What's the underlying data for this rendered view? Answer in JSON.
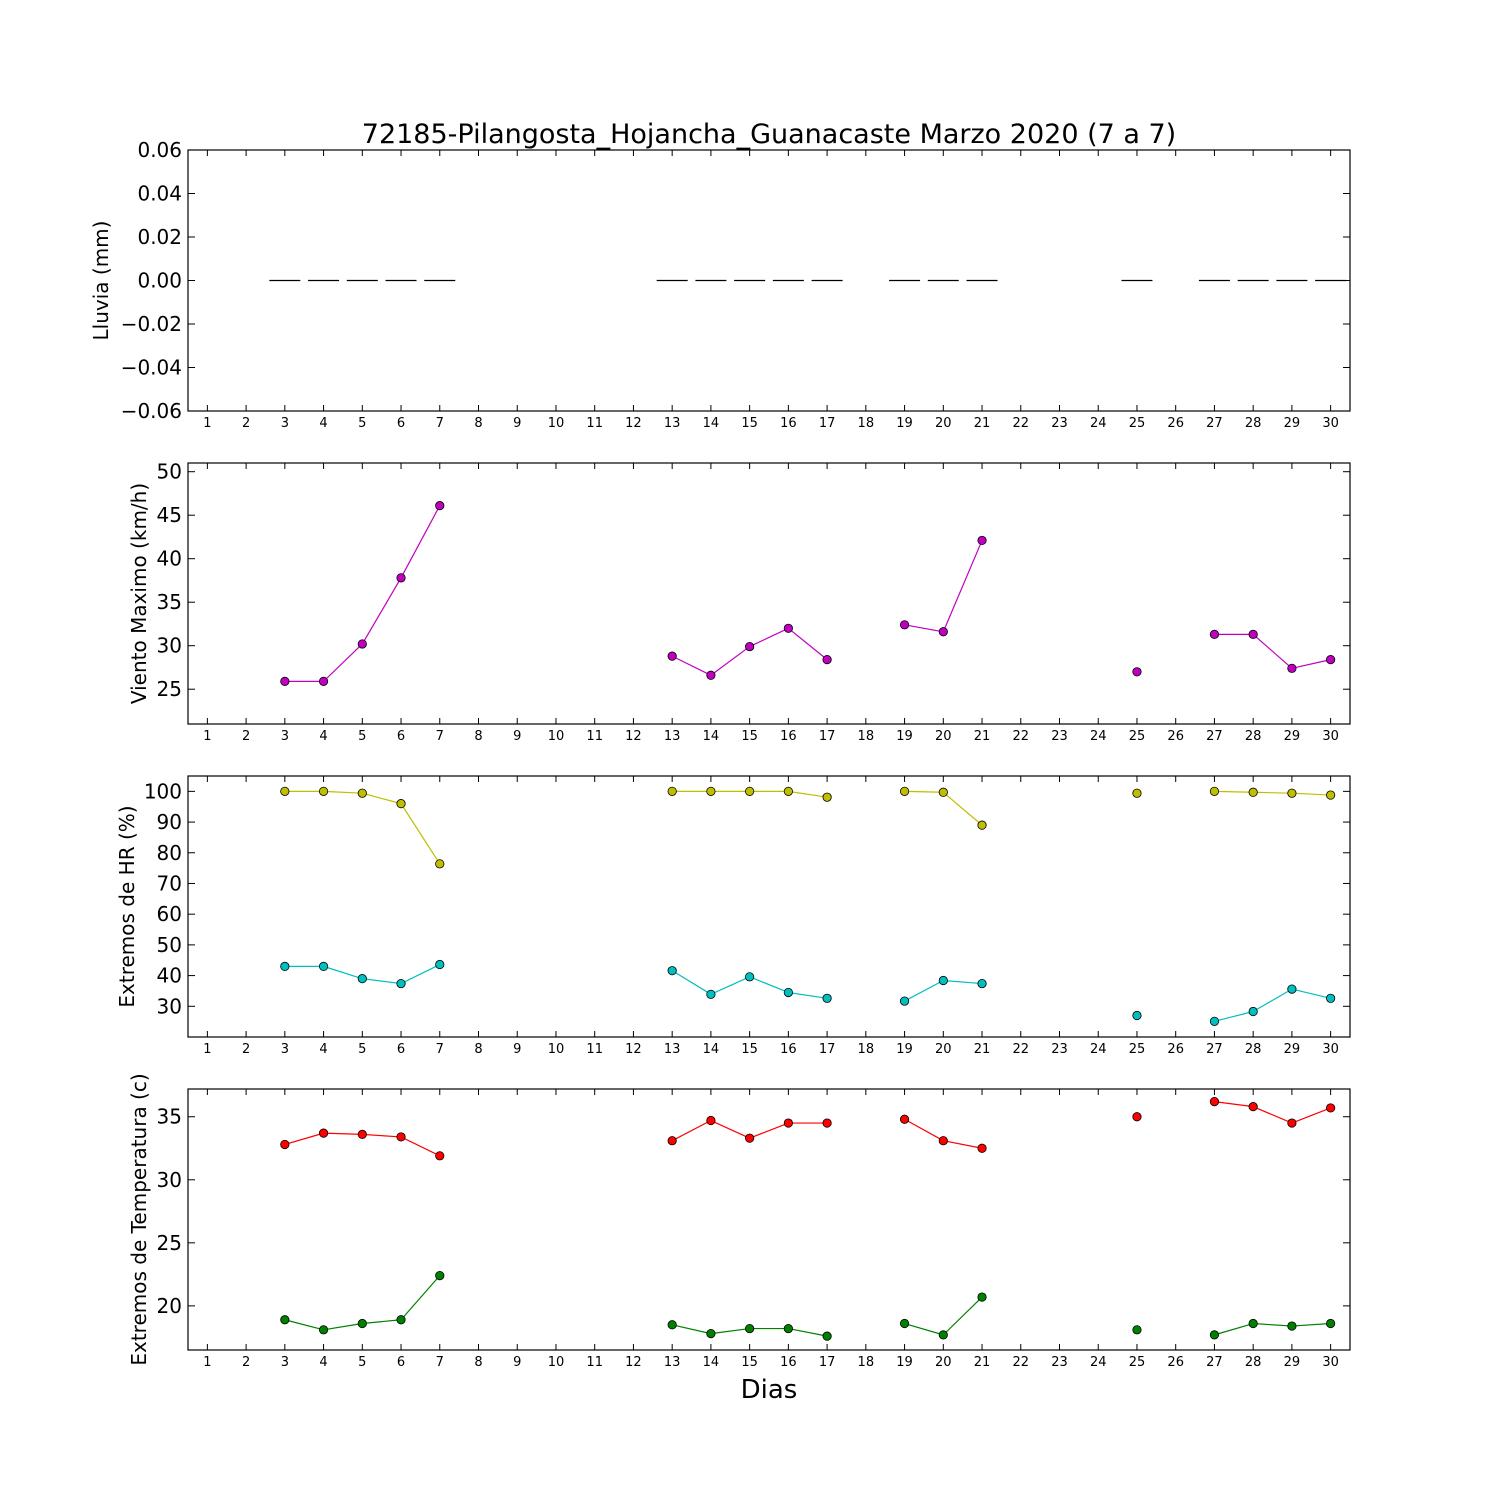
{
  "chart_data": {
    "type": "line",
    "title": "72185-Pilangosta_Hojancha_Guanacaste Marzo 2020  (7 a 7)",
    "xlabel": "Dias",
    "x": [
      1,
      2,
      3,
      4,
      5,
      6,
      7,
      8,
      9,
      10,
      11,
      12,
      13,
      14,
      15,
      16,
      17,
      18,
      19,
      20,
      21,
      22,
      23,
      24,
      25,
      26,
      27,
      28,
      29,
      30
    ],
    "panels": [
      {
        "ylabel": "Lluvia (mm)",
        "type": "bar",
        "ylim": [
          -0.06,
          0.06
        ],
        "yticks": [
          "0.06",
          "0.04",
          "0.02",
          "0.00",
          "−0.02",
          "−0.04",
          "−0.06"
        ],
        "ytick_values": [
          0.06,
          0.04,
          0.02,
          0.0,
          -0.02,
          -0.04,
          -0.06
        ],
        "series": [
          {
            "color": "#000000",
            "values": [
              null,
              null,
              0,
              0,
              0,
              0,
              0,
              null,
              null,
              null,
              null,
              null,
              0,
              0,
              0,
              0,
              0,
              null,
              0,
              0,
              0,
              null,
              null,
              null,
              0,
              null,
              0,
              0,
              0,
              0
            ]
          }
        ]
      },
      {
        "ylabel": "Viento Maximo (km/h)",
        "type": "line",
        "ylim": [
          21,
          51
        ],
        "yticks": [
          "50",
          "45",
          "40",
          "35",
          "30",
          "25"
        ],
        "ytick_values": [
          50,
          45,
          40,
          35,
          30,
          25
        ],
        "series": [
          {
            "color": "#bf00bf",
            "values": [
              null,
              null,
              25.9,
              25.9,
              30.2,
              37.8,
              46.1,
              null,
              null,
              null,
              null,
              null,
              28.8,
              26.6,
              29.9,
              32.0,
              28.4,
              null,
              32.4,
              31.6,
              42.1,
              null,
              null,
              null,
              27.0,
              null,
              31.3,
              31.3,
              27.4,
              28.4
            ]
          }
        ]
      },
      {
        "ylabel": "Extremos de HR (%)",
        "type": "line",
        "ylim": [
          20,
          105
        ],
        "yticks": [
          "100",
          "90",
          "80",
          "70",
          "60",
          "50",
          "40",
          "30"
        ],
        "ytick_values": [
          100,
          90,
          80,
          70,
          60,
          50,
          40,
          30
        ],
        "series": [
          {
            "color": "#bfbf00",
            "values": [
              null,
              null,
              100,
              100,
              99.4,
              96,
              76.4,
              null,
              null,
              null,
              null,
              null,
              100,
              100,
              100,
              100,
              98.1,
              null,
              100,
              99.7,
              89,
              null,
              null,
              null,
              99.4,
              null,
              100,
              99.7,
              99.4,
              98.8
            ]
          },
          {
            "color": "#00bfbf",
            "values": [
              null,
              null,
              43,
              43,
              39,
              37.4,
              43.6,
              null,
              null,
              null,
              null,
              null,
              41.6,
              33.9,
              39.6,
              34.5,
              32.6,
              null,
              31.7,
              38.4,
              37.4,
              null,
              null,
              null,
              27,
              null,
              25.1,
              28.3,
              35.6,
              32.6
            ]
          }
        ]
      },
      {
        "ylabel": "Extremos de Temperatura (c)",
        "type": "line",
        "ylim": [
          16.5,
          37.2
        ],
        "yticks": [
          "35",
          "30",
          "25",
          "20"
        ],
        "ytick_values": [
          35,
          30,
          25,
          20
        ],
        "series": [
          {
            "color": "#ff0000",
            "values": [
              null,
              null,
              32.8,
              33.7,
              33.6,
              33.4,
              31.9,
              null,
              null,
              null,
              null,
              null,
              33.1,
              34.7,
              33.3,
              34.5,
              34.5,
              null,
              34.8,
              33.1,
              32.5,
              null,
              null,
              null,
              35.0,
              null,
              36.2,
              35.8,
              34.5,
              35.7
            ]
          },
          {
            "color": "#008000",
            "values": [
              null,
              null,
              18.9,
              18.1,
              18.6,
              18.9,
              22.4,
              null,
              null,
              null,
              null,
              null,
              18.5,
              17.8,
              18.2,
              18.2,
              17.6,
              null,
              18.6,
              17.7,
              20.7,
              null,
              null,
              null,
              18.1,
              null,
              17.7,
              18.6,
              18.4,
              18.6
            ]
          }
        ]
      }
    ]
  }
}
